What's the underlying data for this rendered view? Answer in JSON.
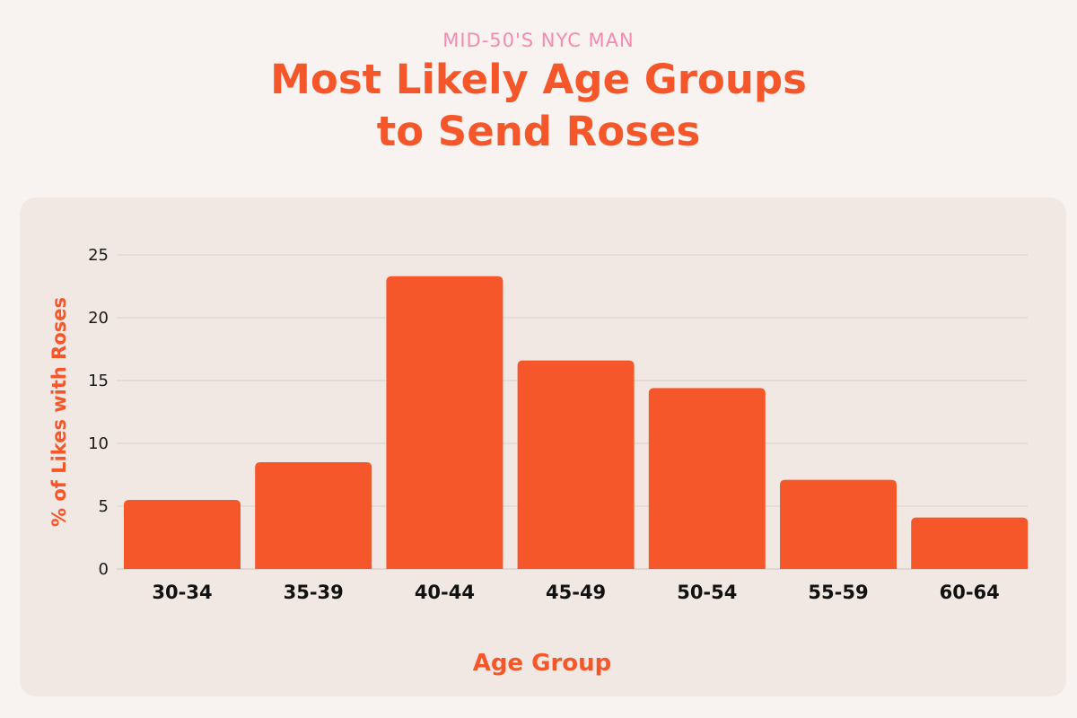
{
  "header": {
    "eyebrow": "MID-50'S NYC MAN",
    "title_line1": "Most Likely Age Groups",
    "title_line2": "to Send Roses"
  },
  "colors": {
    "accent": "#f5572a",
    "eyebrow": "#f48bb3",
    "bar": "#f5572a",
    "grid": "#d8cfca"
  },
  "chart_data": {
    "type": "bar",
    "categories": [
      "30-34",
      "35-39",
      "40-44",
      "45-49",
      "50-54",
      "55-59",
      "60-64"
    ],
    "values": [
      5.5,
      8.5,
      23.3,
      16.6,
      14.4,
      7.1,
      4.1
    ],
    "xlabel": "Age Group",
    "ylabel": "% of Likes with Roses",
    "ylim": [
      0,
      25
    ],
    "yticks": [
      0,
      5,
      10,
      15,
      20,
      25
    ],
    "grid": true,
    "legend": "none"
  }
}
